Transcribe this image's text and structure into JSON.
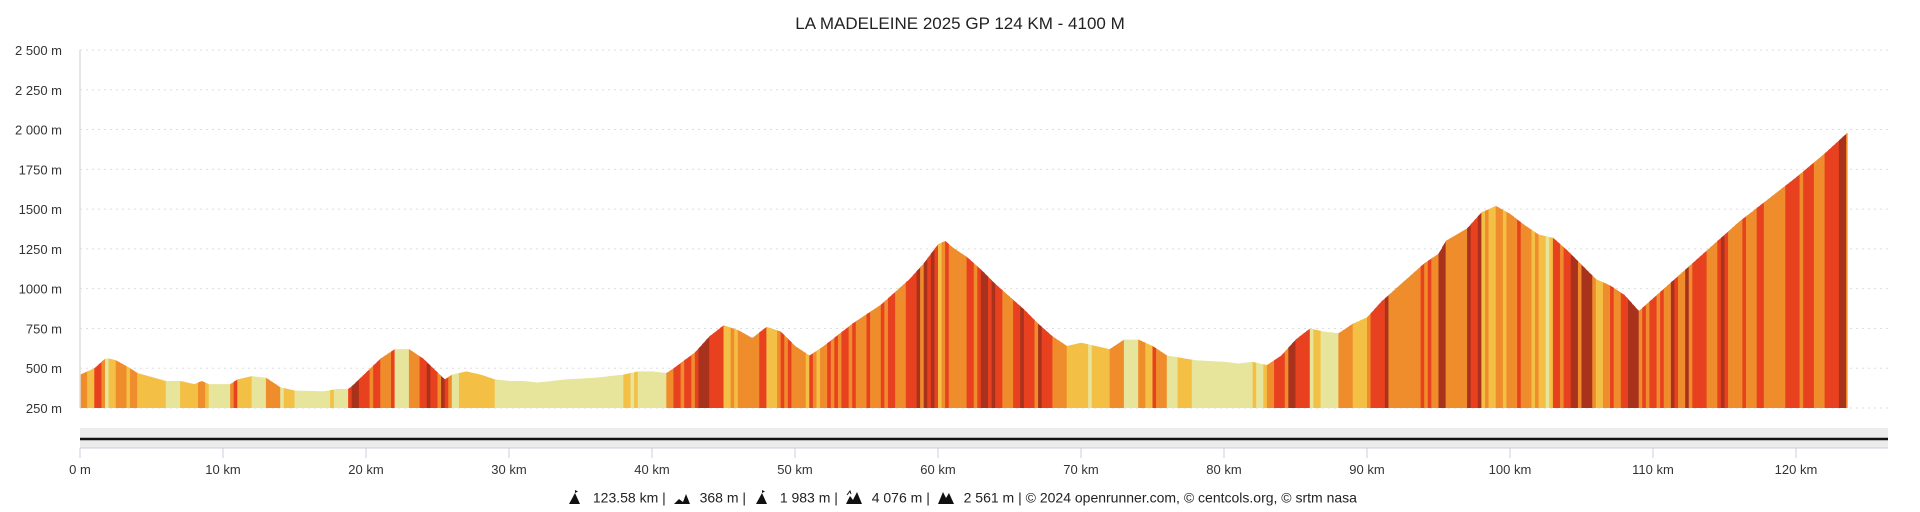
{
  "chart_data": {
    "type": "area",
    "title": "LA MADELEINE 2025 GP 124 KM - 4100 M",
    "xlabel": "",
    "ylabel": "",
    "xlim": [
      0,
      123.58
    ],
    "ylim": [
      250,
      2500
    ],
    "grid": true,
    "y_ticks": [
      "250 m",
      "500 m",
      "750 m",
      "1000 m",
      "1250 m",
      "1500 m",
      "1750 m",
      "2 000 m",
      "2 250 m",
      "2 500 m"
    ],
    "y_tick_values": [
      250,
      500,
      750,
      1000,
      1250,
      1500,
      1750,
      2000,
      2250,
      2500
    ],
    "x_ticks": [
      "0 m",
      "10 km",
      "20 km",
      "30 km",
      "40 km",
      "50 km",
      "60 km",
      "70 km",
      "80 km",
      "90 km",
      "100 km",
      "110 km",
      "120 km"
    ],
    "x_tick_values": [
      0,
      10,
      20,
      30,
      40,
      50,
      60,
      70,
      80,
      90,
      100,
      110,
      120
    ],
    "grade_colors": {
      "flat": "#e6e59b",
      "gentle": "#f3c045",
      "moderate": "#ef8c2b",
      "steep": "#e8411f",
      "very_steep": "#a8321c"
    },
    "profile_km": [
      0,
      1,
      1.8,
      2.5,
      3.5,
      4,
      6,
      7,
      8,
      8.5,
      9,
      10.5,
      11,
      12,
      13,
      14,
      15,
      17,
      18,
      18.8,
      21,
      22,
      23,
      24,
      25.5,
      26,
      27,
      28,
      29,
      30,
      31,
      32,
      34,
      36,
      38,
      39,
      40,
      41,
      41.5,
      43,
      44,
      45,
      46,
      47,
      48,
      49,
      50,
      51,
      52,
      54,
      56,
      57,
      58,
      59,
      60,
      60.5,
      61,
      62,
      63,
      64,
      65,
      66,
      67,
      68,
      69,
      70,
      71,
      72,
      73,
      74,
      75,
      76,
      78,
      80,
      81,
      82,
      83,
      84,
      85,
      86,
      87,
      88,
      89,
      90,
      91,
      92,
      93,
      94,
      95,
      95.5,
      97,
      98,
      99,
      100,
      101,
      102,
      103,
      104,
      105,
      106,
      107,
      108,
      109,
      110,
      111,
      112,
      113,
      114,
      115,
      116,
      118,
      120,
      122,
      123.58
    ],
    "profile_elev": [
      460,
      500,
      565,
      550,
      500,
      470,
      420,
      420,
      400,
      420,
      400,
      400,
      430,
      450,
      440,
      380,
      360,
      355,
      370,
      370,
      560,
      620,
      620,
      560,
      430,
      460,
      480,
      460,
      430,
      420,
      420,
      410,
      430,
      440,
      460,
      480,
      480,
      470,
      500,
      600,
      700,
      770,
      740,
      690,
      760,
      730,
      640,
      580,
      640,
      780,
      900,
      980,
      1060,
      1160,
      1280,
      1300,
      1260,
      1200,
      1120,
      1030,
      950,
      870,
      780,
      700,
      640,
      660,
      640,
      620,
      680,
      680,
      640,
      580,
      550,
      540,
      530,
      540,
      520,
      580,
      680,
      750,
      730,
      720,
      780,
      820,
      920,
      1000,
      1080,
      1160,
      1220,
      1300,
      1380,
      1480,
      1520,
      1470,
      1400,
      1340,
      1320,
      1240,
      1150,
      1060,
      1020,
      960,
      860,
      940,
      1020,
      1100,
      1180,
      1260,
      1340,
      1420,
      1560,
      1700,
      1850,
      1980
    ]
  },
  "footer": {
    "distance": "123.58 km",
    "min_altitude": "368 m",
    "max_altitude": "1 983 m",
    "elevation_gain": "4 076 m",
    "elevation_loss": "2 561 m",
    "sep": "|",
    "credits": "© 2024 openrunner.com, © centcols.org, © srtm nasa"
  }
}
